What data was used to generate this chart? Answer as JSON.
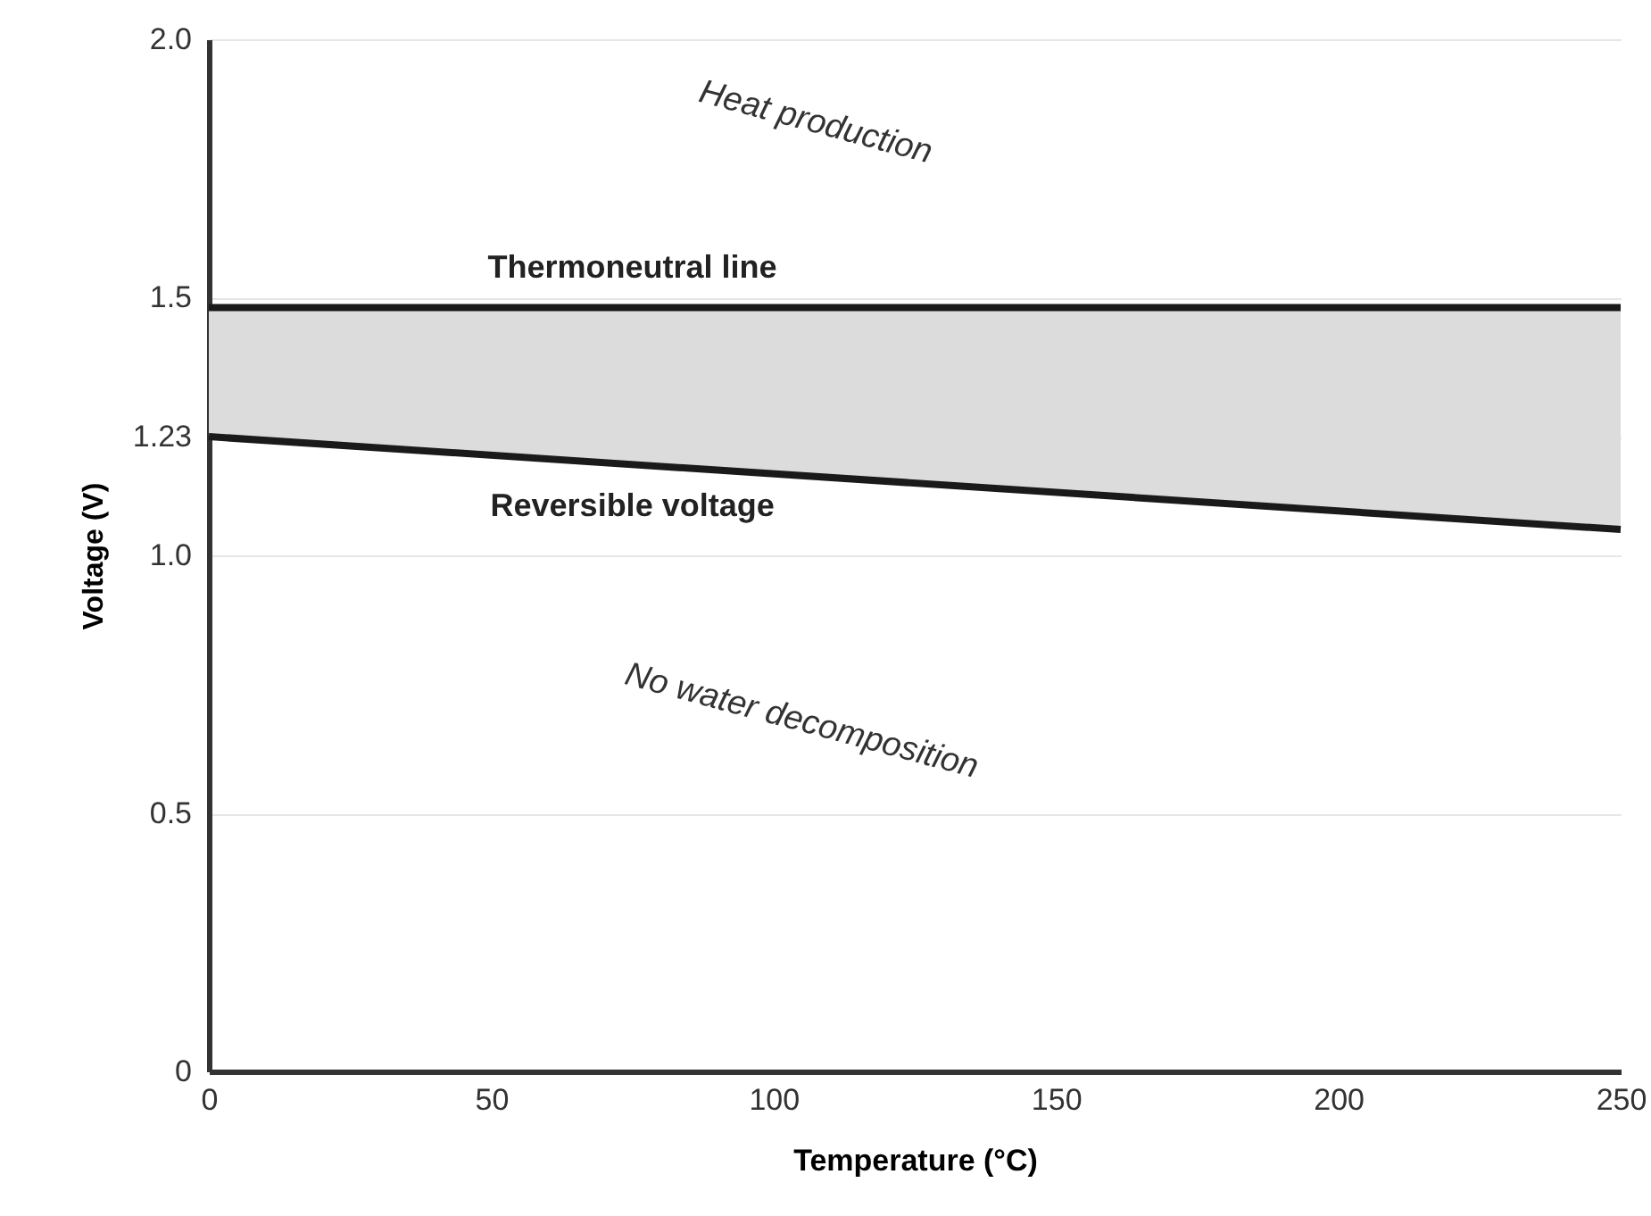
{
  "chart_data": {
    "type": "line",
    "xlabel": "Temperature (°C)",
    "ylabel": "Voltage (V)",
    "x": [
      0,
      250
    ],
    "series": [
      {
        "name": "Thermoneutral line",
        "color": "#1a1a1a",
        "values": [
          1.48,
          1.48
        ]
      },
      {
        "name": "Reversible voltage",
        "color": "#1a1a1a",
        "values": [
          1.23,
          1.05
        ],
        "lower": [
          1.23,
          1.05
        ],
        "upper": [
          1.48,
          1.48
        ]
      }
    ],
    "xlim": [
      0,
      250
    ],
    "xticks": [
      0,
      50,
      100,
      150,
      200,
      250
    ],
    "ylim": [
      0,
      2
    ],
    "yticks": [
      0,
      0.5,
      {
        "value": 1,
        "label": "1.0"
      },
      1.23,
      1.5,
      {
        "value": 2,
        "label": "2.0"
      }
    ],
    "grid": "y",
    "marker": "none",
    "line_style": "solid",
    "annotations": [
      "Heat production",
      "No water decomposition"
    ]
  }
}
